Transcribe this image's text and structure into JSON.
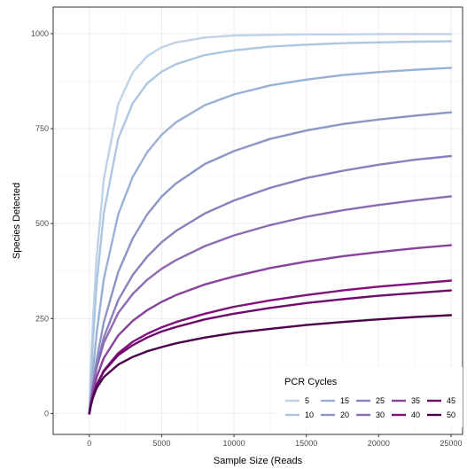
{
  "chart_data": {
    "type": "line",
    "xlabel": "Sample Size (Reads",
    "ylabel": "Species Detected",
    "xlim": [
      -2500,
      25800
    ],
    "ylim": [
      -55,
      1070
    ],
    "x_ticks": [
      0,
      5000,
      10000,
      15000,
      20000,
      25000
    ],
    "y_ticks": [
      0,
      250,
      500,
      750,
      1000
    ],
    "grid": true,
    "legend": {
      "title": "PCR Cycles",
      "placement": "bottom-right"
    },
    "x": [
      0,
      100,
      250,
      500,
      1000,
      2000,
      3000,
      4000,
      5000,
      6000,
      8000,
      10000,
      12500,
      15000,
      17500,
      20000,
      22500,
      25000
    ],
    "series": [
      {
        "name": "5",
        "color": "#bfd3e6",
        "values": [
          0,
          114,
          244,
          411,
          617,
          815,
          898,
          941,
          964,
          977,
          990,
          995,
          997,
          998,
          998,
          999,
          999,
          999
        ]
      },
      {
        "name": "10",
        "color": "#aec6e0",
        "values": [
          0,
          86,
          193,
          339,
          528,
          724,
          817,
          869,
          900,
          920,
          944,
          956,
          966,
          971,
          975,
          977,
          979,
          980
        ]
      },
      {
        "name": "15",
        "color": "#9ab0d5",
        "values": [
          0,
          48,
          113,
          210,
          354,
          525,
          623,
          688,
          734,
          767,
          812,
          840,
          864,
          879,
          891,
          899,
          905,
          910
        ]
      },
      {
        "name": "20",
        "color": "#8c96c6",
        "values": [
          0,
          33,
          76,
          141,
          240,
          373,
          461,
          524,
          571,
          606,
          657,
          691,
          723,
          745,
          762,
          774,
          784,
          793
        ]
      },
      {
        "name": "25",
        "color": "#8c7fbd",
        "values": [
          0,
          30,
          69,
          123,
          200,
          299,
          365,
          413,
          451,
          481,
          527,
          561,
          594,
          620,
          639,
          655,
          668,
          678
        ]
      },
      {
        "name": "30",
        "color": "#8c6bb1",
        "values": [
          0,
          32,
          70,
          120,
          186,
          265,
          315,
          352,
          381,
          404,
          441,
          469,
          496,
          518,
          535,
          549,
          561,
          572
        ]
      },
      {
        "name": "35",
        "color": "#88419d",
        "values": [
          0,
          25,
          56,
          95,
          146,
          206,
          244,
          272,
          294,
          312,
          340,
          361,
          383,
          400,
          414,
          425,
          435,
          443
        ]
      },
      {
        "name": "40",
        "color": "#810f7c",
        "values": [
          0,
          20,
          44,
          75,
          113,
          159,
          189,
          210,
          227,
          241,
          263,
          281,
          298,
          312,
          324,
          334,
          342,
          350
        ]
      },
      {
        "name": "45",
        "color": "#6e0a6b",
        "values": [
          0,
          21,
          45,
          74,
          111,
          154,
          180,
          200,
          216,
          228,
          248,
          263,
          278,
          291,
          301,
          310,
          317,
          324
        ]
      },
      {
        "name": "50",
        "color": "#4d004b",
        "values": [
          0,
          20,
          42,
          67,
          96,
          129,
          149,
          164,
          175,
          185,
          200,
          212,
          223,
          233,
          241,
          248,
          254,
          259
        ]
      }
    ]
  }
}
